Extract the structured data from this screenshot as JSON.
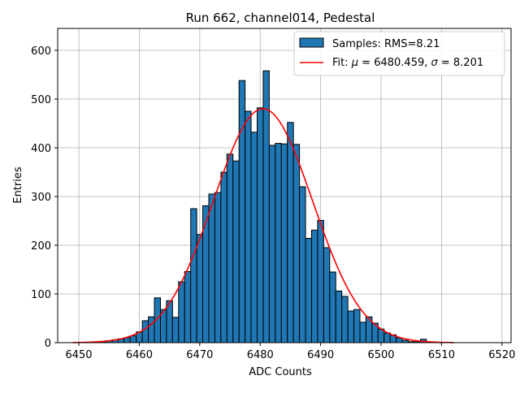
{
  "chart_data": {
    "type": "bar",
    "title": "Run 662, channel014, Pedestal",
    "xlabel": "ADC Counts",
    "ylabel": "Entries",
    "xlim": [
      6446.5,
      6521.5
    ],
    "ylim": [
      0,
      645
    ],
    "grid": true,
    "x_ticks": [
      6450,
      6460,
      6470,
      6480,
      6490,
      6500,
      6510,
      6520
    ],
    "y_ticks": [
      0,
      100,
      200,
      300,
      400,
      500,
      600
    ],
    "bin_width": 1,
    "bins": [
      6454,
      6455,
      6456,
      6457,
      6458,
      6459,
      6460,
      6461,
      6462,
      6463,
      6464,
      6465,
      6466,
      6467,
      6468,
      6469,
      6470,
      6471,
      6472,
      6473,
      6474,
      6475,
      6476,
      6477,
      6478,
      6479,
      6480,
      6481,
      6482,
      6483,
      6484,
      6485,
      6486,
      6487,
      6488,
      6489,
      6490,
      6491,
      6492,
      6493,
      6494,
      6495,
      6496,
      6497,
      6498,
      6499,
      6500,
      6501,
      6502,
      6503,
      6504,
      6505,
      6506,
      6507
    ],
    "values": [
      2,
      4,
      6,
      8,
      10,
      14,
      22,
      45,
      53,
      92,
      68,
      86,
      52,
      125,
      146,
      275,
      222,
      281,
      305,
      308,
      350,
      387,
      373,
      538,
      475,
      432,
      482,
      558,
      405,
      409,
      408,
      452,
      407,
      320,
      214,
      231,
      251,
      195,
      145,
      106,
      95,
      65,
      68,
      42,
      53,
      40,
      28,
      20,
      16,
      10,
      5,
      2,
      2,
      7
    ],
    "series": [
      {
        "name": "Samples: RMS=8.21",
        "type": "histogram",
        "color": "#1f77b4"
      },
      {
        "name": "Fit: μ = 6480.459, σ = 8.201",
        "type": "line",
        "color": "#ff0000",
        "mu": 6480.459,
        "sigma": 8.201,
        "amplitude": 480,
        "x_range": [
          6449,
          6512
        ]
      }
    ],
    "legend": {
      "position": "top-right",
      "entries": [
        {
          "label_prefix": "Samples: RMS=8.21",
          "label": "Samples: RMS=8.21"
        },
        {
          "label_prefix": "Fit: ",
          "mu_symbol": "μ",
          "mu_text": " = 6480.459, ",
          "sigma_symbol": "σ",
          "sigma_text": " = 8.201"
        }
      ]
    }
  }
}
